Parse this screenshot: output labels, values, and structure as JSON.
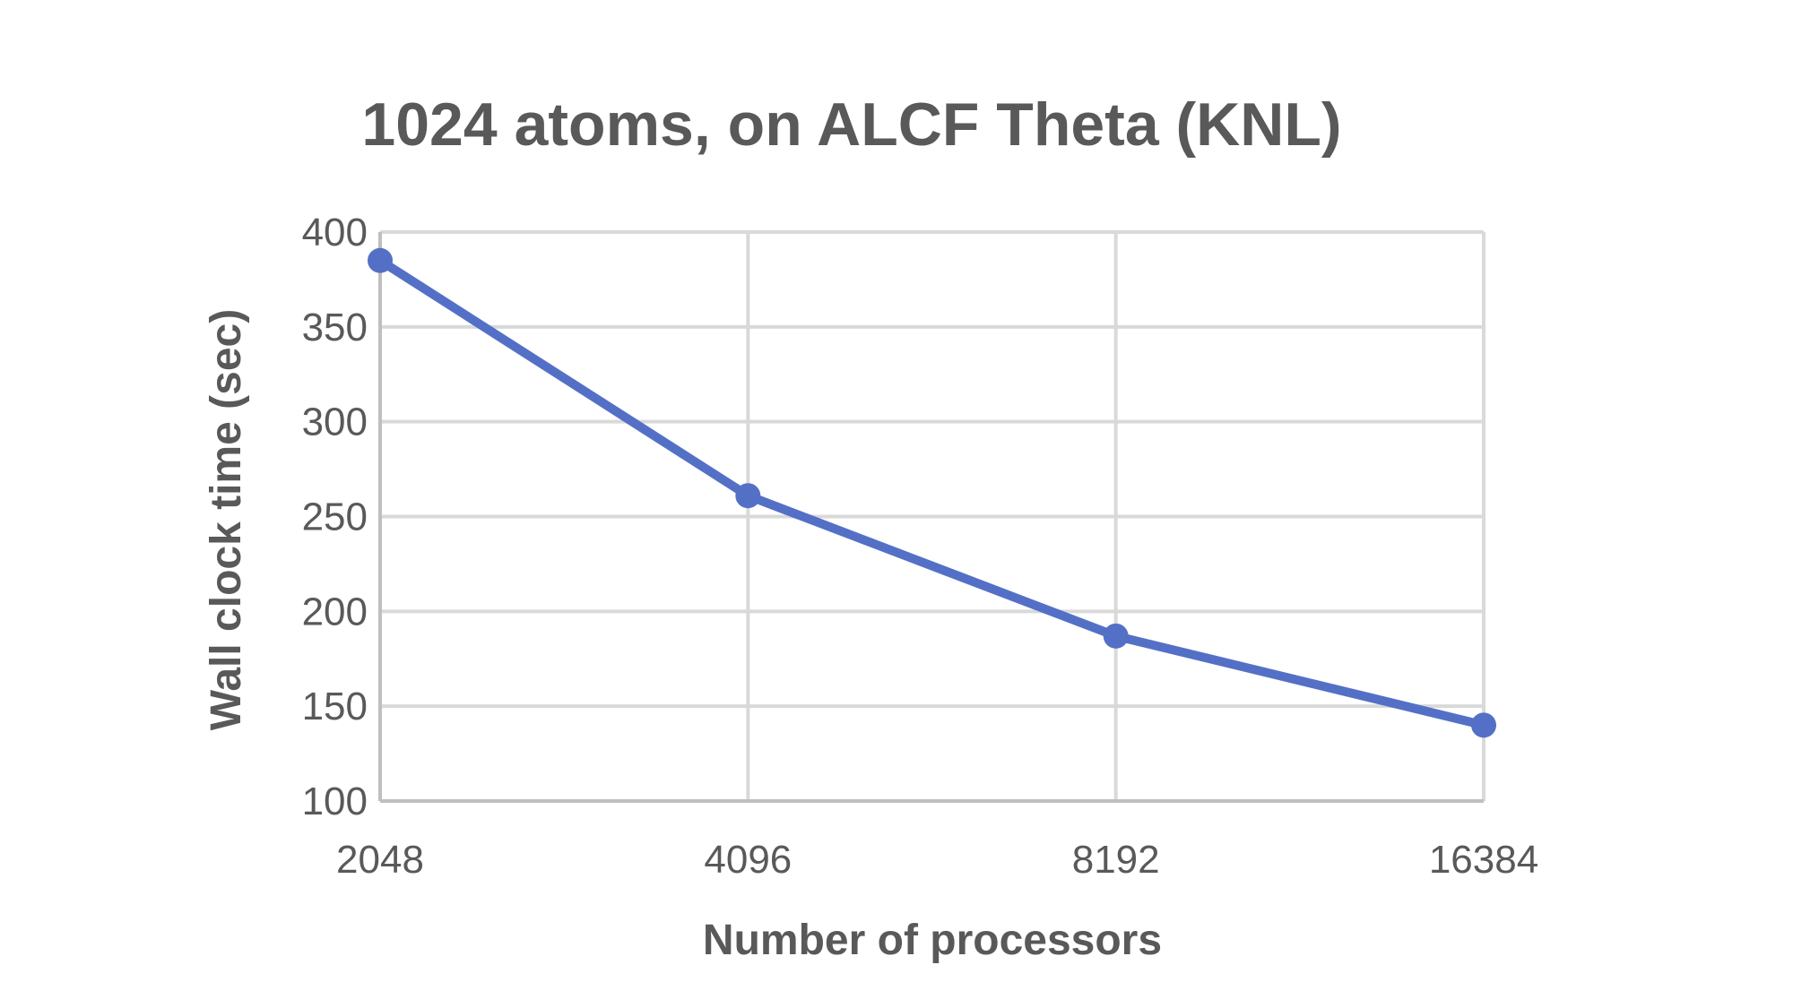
{
  "chart_data": {
    "type": "line",
    "title": "1024 atoms, on ALCF Theta (KNL)",
    "xlabel": "Number of processors",
    "ylabel": "Wall clock time (sec)",
    "categories": [
      "2048",
      "4096",
      "8192",
      "16384"
    ],
    "series": [
      {
        "values": [
          385,
          261,
          187,
          140
        ],
        "color": "#5470c6"
      }
    ],
    "ylim": [
      100,
      400
    ],
    "yticks": [
      "100",
      "150",
      "200",
      "250",
      "300",
      "350",
      "400"
    ],
    "grid": true,
    "legend": "none"
  }
}
